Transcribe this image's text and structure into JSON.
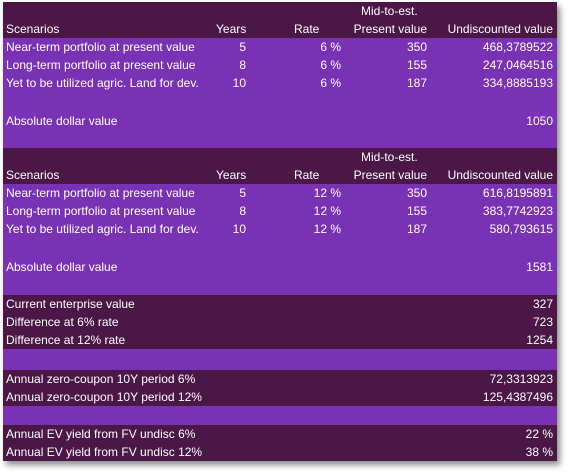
{
  "table1": {
    "header_top": "Mid-to-est.",
    "headers": [
      "Scenarios",
      "Years",
      "Rate",
      "Present value",
      "Undiscounted value"
    ],
    "rows": [
      {
        "label": "Near-term portfolio at present value",
        "years": "5",
        "rate": "6 %",
        "pv": "350",
        "uv": "468,3789522"
      },
      {
        "label": "Long-term portfolio at present value",
        "years": "8",
        "rate": "6 %",
        "pv": "155",
        "uv": "247,0464516"
      },
      {
        "label": "Yet to be utilized agric. Land for dev.",
        "years": "10",
        "rate": "6 %",
        "pv": "187",
        "uv": "334,8885193"
      }
    ],
    "total_label": "Absolute dollar value",
    "total_value": "1050"
  },
  "table2": {
    "header_top": "Mid-to-est.",
    "headers": [
      "Scenarios",
      "Years",
      "Rate",
      "Present value",
      "Undiscounted value"
    ],
    "rows": [
      {
        "label": "Near-term portfolio at present value",
        "years": "5",
        "rate": "12 %",
        "pv": "350",
        "uv": "616,8195891"
      },
      {
        "label": "Long-term portfolio at present value",
        "years": "8",
        "rate": "12 %",
        "pv": "155",
        "uv": "383,7742923"
      },
      {
        "label": "Yet to be utilized agric. Land for dev.",
        "years": "10",
        "rate": "12 %",
        "pv": "187",
        "uv": "580,793615"
      }
    ],
    "total_label": "Absolute dollar value",
    "total_value": "1581"
  },
  "summary": [
    {
      "label": "Current enterprise value",
      "value": "327"
    },
    {
      "label": "Difference at 6% rate",
      "value": "723"
    },
    {
      "label": "Difference at 12% rate",
      "value": "1254"
    }
  ],
  "zero_coupon": [
    {
      "label": "Annual zero-coupon 10Y period 6%",
      "value": "72,3313923"
    },
    {
      "label": "Annual zero-coupon 10Y period 12%",
      "value": "125,4387496"
    }
  ],
  "ev_yield": [
    {
      "label": "Annual EV yield from FV undisc 6%",
      "value": "22 %"
    },
    {
      "label": "Annual EV yield from FV undisc 12%",
      "value": "38 %"
    }
  ],
  "colors": {
    "dark": "#4b1747",
    "purple": "#6a2aa0",
    "violet": "#7a32b5"
  }
}
